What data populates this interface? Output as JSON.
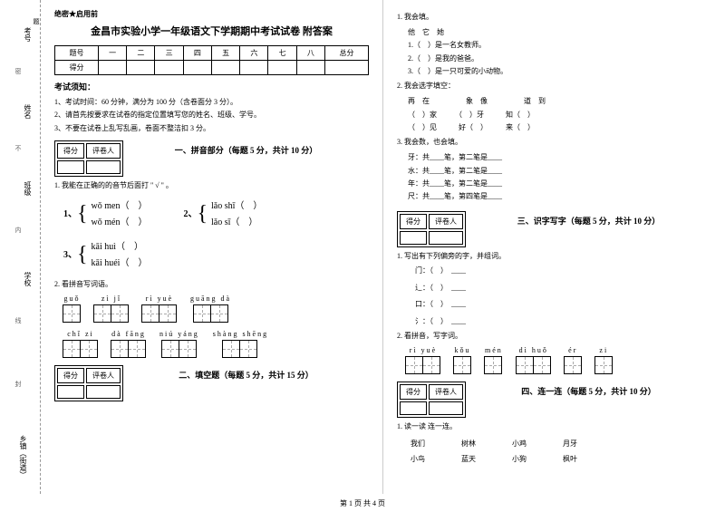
{
  "binding": {
    "labels": [
      "考号",
      "姓名",
      "班级",
      "学校",
      "乡镇（街道）"
    ],
    "seps": [
      "密",
      "不",
      "内",
      "线",
      "封"
    ],
    "hint": "题"
  },
  "secret": "绝密★启用前",
  "title": "金昌市实验小学一年级语文下学期期中考试试卷 附答案",
  "scoreTable": {
    "headers": [
      "题号",
      "一",
      "二",
      "三",
      "四",
      "五",
      "六",
      "七",
      "八",
      "总分"
    ],
    "row2": "得分"
  },
  "notice": "考试须知：",
  "rules": [
    "1、考试时间：60 分钟，满分为 100 分（含卷面分 3 分）。",
    "2、请首先按要求在试卷的指定位置填写您的姓名、班级、学号。",
    "3、不要在试卷上乱写乱画，卷面不整洁扣 3 分。"
  ],
  "scoreBox": {
    "c1": "得分",
    "c2": "评卷人"
  },
  "sections": {
    "s1": "一、拼音部分（每题 5 分，共计 10 分）",
    "s2": "二、填空题（每题 5 分，共计 15 分）",
    "s3": "三、识字写字（每题 5 分，共计 10 分）",
    "s4": "四、连一连（每题 5 分，共计 10 分）"
  },
  "q1": {
    "title": "1. 我能在正确的的音节后面打 \" √ \" 。",
    "items": [
      {
        "n": "1、",
        "a": "wǒ men（　）",
        "b": "wǒ mén（　）"
      },
      {
        "n": "2、",
        "a": "lǎo shī（　）",
        "b": "lǎo sī（　）"
      },
      {
        "n": "3、",
        "a": "kāi huì（　）",
        "b": "kāi huéi（　）"
      }
    ]
  },
  "q2": {
    "title": "2. 看拼音写词语。",
    "row1": [
      "guǒ",
      "zì jǐ",
      "rì yuè",
      "guāng dà"
    ],
    "row2": [
      "chǐ zi",
      "dà fāng",
      "niú yáng",
      "shàng shēng"
    ],
    "counts": [
      1,
      2,
      2,
      2
    ]
  },
  "right": {
    "f1": {
      "title": "1. 我会填。",
      "line1": "他　它　她",
      "items": [
        "1.（　）是一名女教师。",
        "2.（　）是我的爸爸。",
        "3.（　）是一只可爱的小动物。"
      ]
    },
    "f2": {
      "title": "2. 我会选字填空：",
      "header1": "再　在　　　　　象　像　　　　　道　到",
      "rows": [
        "（　）家　　　（　）牙　　　知（　）",
        "（　）见　　　好（　）　　　来（　）"
      ]
    },
    "f3": {
      "title": "3. 我会数，也会填。",
      "items": [
        "牙：共____笔，第二笔是____",
        "水：共____笔，第二笔是____",
        "年：共____笔，第二笔是____",
        "尺：共____笔，第四笔是____"
      ]
    },
    "s3q1": {
      "title": "1. 写出有下列偏旁的字，并组词。",
      "items": [
        "门：（　）　____",
        "辶：（　）　____",
        "口：（　）　____",
        "氵：（　）　____"
      ]
    },
    "s3q2": {
      "title": "2. 看拼音，写字词。",
      "pinyin": [
        "rì yuè",
        "kǒu",
        "mén",
        "dì huǒ",
        "ér",
        "zi"
      ],
      "counts": [
        2,
        1,
        1,
        2,
        1,
        1
      ]
    },
    "s4q1": {
      "title": "1. 读一读 连一连。",
      "row1": [
        "我们",
        "树林",
        "小鸡",
        "月牙"
      ],
      "row2": [
        "小鸟",
        "蓝天",
        "小狗",
        "枫叶"
      ]
    }
  },
  "footer": "第 1 页 共 4 页"
}
